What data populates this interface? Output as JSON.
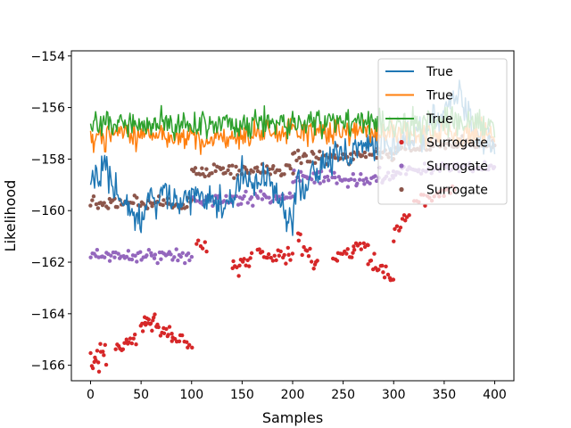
{
  "chart_data": {
    "type": "line",
    "title": "",
    "xlabel": "Samples",
    "ylabel": "Likelihood",
    "xlim": [
      -19,
      419
    ],
    "ylim": [
      -166.6,
      -153.8
    ],
    "xticks": [
      0,
      50,
      100,
      150,
      200,
      250,
      300,
      350,
      400
    ],
    "yticks": [
      -166,
      -164,
      -162,
      -160,
      -158,
      -156,
      -154
    ],
    "xtick_labels": [
      "0",
      "50",
      "100",
      "150",
      "200",
      "250",
      "300",
      "350",
      "400"
    ],
    "ytick_labels": [
      "−166",
      "−164",
      "−162",
      "−160",
      "−158",
      "−156",
      "−154"
    ],
    "grid": false,
    "legend_position": "top-right",
    "series": [
      {
        "name": "True",
        "kind": "line",
        "color": "#1f77b4",
        "segments": [
          {
            "x_start": 0,
            "x_end": 400,
            "points": [
              [
                0,
                -158.9
              ],
              [
                10,
                -158.6
              ],
              [
                15,
                -158.1
              ],
              [
                20,
                -159.2
              ],
              [
                30,
                -159.4
              ],
              [
                40,
                -159.9
              ],
              [
                45,
                -160.2
              ],
              [
                50,
                -160.5
              ],
              [
                55,
                -159.3
              ],
              [
                60,
                -159.2
              ],
              [
                65,
                -159.8
              ],
              [
                70,
                -158.9
              ],
              [
                75,
                -159.2
              ],
              [
                80,
                -159.5
              ],
              [
                85,
                -159.8
              ],
              [
                90,
                -159.6
              ],
              [
                100,
                -159.4
              ],
              [
                110,
                -159.5
              ],
              [
                120,
                -159.6
              ],
              [
                130,
                -159.8
              ],
              [
                140,
                -159.5
              ],
              [
                145,
                -159.0
              ],
              [
                150,
                -158.5
              ],
              [
                160,
                -158.9
              ],
              [
                170,
                -159.0
              ],
              [
                175,
                -158.0
              ],
              [
                180,
                -159.0
              ],
              [
                185,
                -159.3
              ],
              [
                190,
                -159.6
              ],
              [
                195,
                -160.3
              ],
              [
                200,
                -160.6
              ],
              [
                205,
                -158.6
              ],
              [
                210,
                -159.4
              ],
              [
                215,
                -159.0
              ],
              [
                220,
                -158.3
              ],
              [
                225,
                -158.5
              ],
              [
                230,
                -158.1
              ],
              [
                240,
                -157.9
              ],
              [
                250,
                -157.8
              ],
              [
                255,
                -158.0
              ],
              [
                260,
                -157.7
              ],
              [
                265,
                -157.6
              ],
              [
                270,
                -157.5
              ],
              [
                280,
                -157.6
              ],
              [
                290,
                -157.4
              ],
              [
                300,
                -157.6
              ],
              [
                310,
                -157.3
              ],
              [
                320,
                -157.2
              ],
              [
                330,
                -156.9
              ],
              [
                340,
                -156.6
              ],
              [
                350,
                -156.3
              ],
              [
                360,
                -155.6
              ],
              [
                365,
                -155.2
              ],
              [
                370,
                -156.0
              ],
              [
                375,
                -156.4
              ],
              [
                380,
                -157.1
              ],
              [
                390,
                -157.3
              ],
              [
                400,
                -157.4
              ]
            ],
            "noise": 0.55
          }
        ]
      },
      {
        "name": "True",
        "kind": "line",
        "color": "#ff7f0e",
        "segments": [
          {
            "x_start": 0,
            "x_end": 400,
            "points": [
              [
                0,
                -157.1
              ],
              [
                50,
                -157.0
              ],
              [
                100,
                -157.2
              ],
              [
                150,
                -157.1
              ],
              [
                200,
                -157.0
              ],
              [
                250,
                -156.9
              ],
              [
                300,
                -157.0
              ],
              [
                350,
                -157.0
              ],
              [
                400,
                -157.1
              ]
            ],
            "noise": 0.45
          }
        ]
      },
      {
        "name": "True",
        "kind": "line",
        "color": "#2ca02c",
        "segments": [
          {
            "x_start": 0,
            "x_end": 400,
            "points": [
              [
                0,
                -156.7
              ],
              [
                50,
                -156.6
              ],
              [
                100,
                -156.7
              ],
              [
                150,
                -156.6
              ],
              [
                200,
                -156.6
              ],
              [
                250,
                -156.5
              ],
              [
                300,
                -156.7
              ],
              [
                350,
                -156.6
              ],
              [
                400,
                -156.7
              ]
            ],
            "noise": 0.45
          }
        ]
      },
      {
        "name": "Surrogate",
        "kind": "scatter",
        "color": "#d62728",
        "clusters": [
          {
            "x_start": 0,
            "x_end": 15,
            "y_start": -165.8,
            "y_end": -165.6,
            "spread": 0.25,
            "n": 15
          },
          {
            "x_start": 25,
            "x_end": 45,
            "y_start": -165.2,
            "y_end": -165.0,
            "spread": 0.18,
            "n": 16
          },
          {
            "x_start": 50,
            "x_end": 65,
            "y_start": -164.5,
            "y_end": -164.4,
            "spread": 0.15,
            "n": 16
          },
          {
            "x_start": 65,
            "x_end": 80,
            "y_start": -164.6,
            "y_end": -164.8,
            "spread": 0.15,
            "n": 12
          },
          {
            "x_start": 80,
            "x_end": 100,
            "y_start": -164.9,
            "y_end": -165.1,
            "spread": 0.12,
            "n": 12
          },
          {
            "x_start": 105,
            "x_end": 115,
            "y_start": -161.3,
            "y_end": -161.3,
            "spread": 0.15,
            "n": 6
          },
          {
            "x_start": 140,
            "x_end": 160,
            "y_start": -162.2,
            "y_end": -161.9,
            "spread": 0.2,
            "n": 14
          },
          {
            "x_start": 165,
            "x_end": 200,
            "y_start": -161.6,
            "y_end": -161.8,
            "spread": 0.15,
            "n": 22
          },
          {
            "x_start": 205,
            "x_end": 225,
            "y_start": -161.0,
            "y_end": -162.2,
            "spread": 0.2,
            "n": 14
          },
          {
            "x_start": 240,
            "x_end": 260,
            "y_start": -161.8,
            "y_end": -161.6,
            "spread": 0.15,
            "n": 12
          },
          {
            "x_start": 260,
            "x_end": 275,
            "y_start": -161.3,
            "y_end": -161.4,
            "spread": 0.15,
            "n": 10
          },
          {
            "x_start": 275,
            "x_end": 300,
            "y_start": -162.0,
            "y_end": -162.5,
            "spread": 0.2,
            "n": 18
          },
          {
            "x_start": 300,
            "x_end": 315,
            "y_start": -160.8,
            "y_end": -160.2,
            "spread": 0.2,
            "n": 10
          },
          {
            "x_start": 320,
            "x_end": 345,
            "y_start": -159.6,
            "y_end": -159.4,
            "spread": 0.15,
            "n": 12
          },
          {
            "x_start": 345,
            "x_end": 360,
            "y_start": -159.3,
            "y_end": -159.3,
            "spread": 0.12,
            "n": 8
          }
        ]
      },
      {
        "name": "Surrogate",
        "kind": "scatter",
        "color": "#9467bd",
        "clusters": [
          {
            "x_start": 0,
            "x_end": 100,
            "y_start": -161.7,
            "y_end": -161.8,
            "spread": 0.12,
            "n": 60
          },
          {
            "x_start": 100,
            "x_end": 200,
            "y_start": -159.6,
            "y_end": -159.5,
            "spread": 0.12,
            "n": 60
          },
          {
            "x_start": 200,
            "x_end": 300,
            "y_start": -158.8,
            "y_end": -158.7,
            "spread": 0.15,
            "n": 60
          },
          {
            "x_start": 300,
            "x_end": 400,
            "y_start": -158.4,
            "y_end": -158.3,
            "spread": 0.12,
            "n": 60
          }
        ]
      },
      {
        "name": "Surrogate",
        "kind": "scatter",
        "color": "#8c564b",
        "clusters": [
          {
            "x_start": 0,
            "x_end": 100,
            "y_start": -159.7,
            "y_end": -159.7,
            "spread": 0.12,
            "n": 60
          },
          {
            "x_start": 100,
            "x_end": 200,
            "y_start": -158.5,
            "y_end": -158.4,
            "spread": 0.15,
            "n": 60
          },
          {
            "x_start": 200,
            "x_end": 300,
            "y_start": -157.9,
            "y_end": -157.8,
            "spread": 0.15,
            "n": 60
          },
          {
            "x_start": 300,
            "x_end": 400,
            "y_start": -157.5,
            "y_end": -157.4,
            "spread": 0.12,
            "n": 60
          }
        ]
      }
    ]
  }
}
